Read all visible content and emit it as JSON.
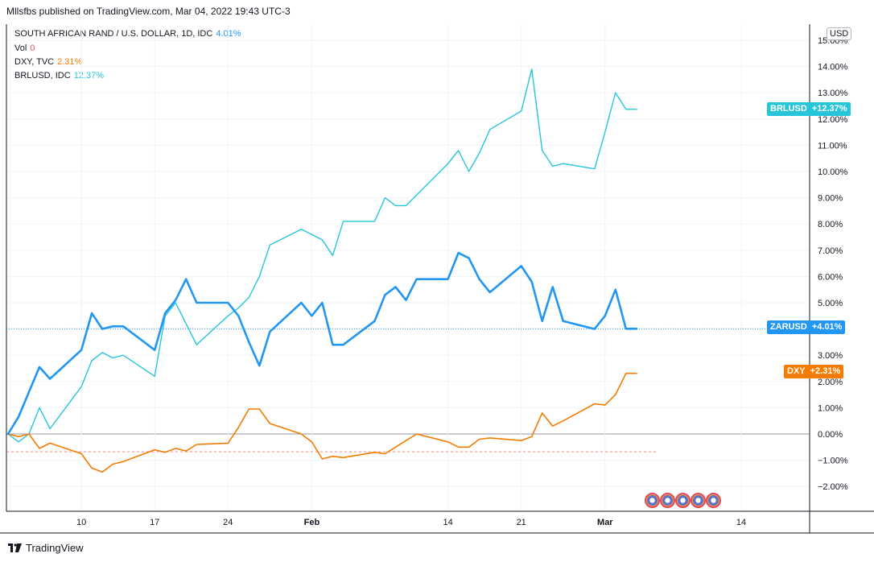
{
  "header": {
    "published": "Mllsfbs published on TradingView.com, Mar 04, 2022 19:43 UTC-3"
  },
  "legend": [
    {
      "label": "SOUTH AFRICAN RAND / U.S. DOLLAR, 1D, IDC",
      "value": "4.01%",
      "color": "#2196f3"
    },
    {
      "label": "Vol",
      "value": "0",
      "color": "#ef5350"
    },
    {
      "label": "DXY, TVC",
      "value": "2.31%",
      "color": "#f57c00"
    },
    {
      "label": "BRLUSD, IDC",
      "value": "12.37%",
      "color": "#26c6da"
    }
  ],
  "axis": {
    "currency": "USD",
    "y_ticks": [
      "15.00%",
      "14.00%",
      "13.00%",
      "12.00%",
      "11.00%",
      "10.00%",
      "9.00%",
      "8.00%",
      "7.00%",
      "6.00%",
      "5.00%",
      "4.00%",
      "3.00%",
      "2.00%",
      "1.00%",
      "0.00%",
      "−1.00%",
      "−2.00%"
    ],
    "x_ticks": [
      {
        "label": "10",
        "date": "2022-01-10",
        "bold": false
      },
      {
        "label": "17",
        "date": "2022-01-17",
        "bold": false
      },
      {
        "label": "24",
        "date": "2022-01-24",
        "bold": false
      },
      {
        "label": "Feb",
        "date": "2022-02-01",
        "bold": true
      },
      {
        "label": "14",
        "date": "2022-02-14",
        "bold": false
      },
      {
        "label": "21",
        "date": "2022-02-21",
        "bold": false
      },
      {
        "label": "Mar",
        "date": "2022-03-01",
        "bold": true
      },
      {
        "label": "14",
        "date": "2022-03-14",
        "bold": false
      }
    ]
  },
  "badges": {
    "brlusd": {
      "name": "BRLUSD",
      "value": "+12.37%",
      "color": "#26c6da"
    },
    "zarusd": {
      "name": "ZARUSD",
      "value": "+4.01%",
      "color": "#2196f3"
    },
    "dxy": {
      "name": "DXY",
      "value": "+2.31%",
      "color": "#f57c00"
    }
  },
  "footer": {
    "brand": "TradingView"
  },
  "chart_data": {
    "type": "line",
    "ylim": [
      -3.0,
      15.5
    ],
    "xlim": [
      "2022-01-03",
      "2022-03-20"
    ],
    "y_unit": "%",
    "grid": true,
    "legend_position": "top-left",
    "series": [
      {
        "name": "SOUTH AFRICAN RAND / U.S. DOLLAR, 1D, IDC",
        "color": "#2196f3",
        "x": [
          "2022-01-03",
          "2022-01-04",
          "2022-01-05",
          "2022-01-06",
          "2022-01-07",
          "2022-01-10",
          "2022-01-11",
          "2022-01-12",
          "2022-01-13",
          "2022-01-14",
          "2022-01-17",
          "2022-01-18",
          "2022-01-19",
          "2022-01-20",
          "2022-01-21",
          "2022-01-24",
          "2022-01-25",
          "2022-01-26",
          "2022-01-27",
          "2022-01-28",
          "2022-01-31",
          "2022-02-01",
          "2022-02-02",
          "2022-02-03",
          "2022-02-04",
          "2022-02-07",
          "2022-02-08",
          "2022-02-09",
          "2022-02-10",
          "2022-02-11",
          "2022-02-14",
          "2022-02-15",
          "2022-02-16",
          "2022-02-17",
          "2022-02-18",
          "2022-02-21",
          "2022-02-22",
          "2022-02-23",
          "2022-02-24",
          "2022-02-25",
          "2022-02-28",
          "2022-03-01",
          "2022-03-02",
          "2022-03-03",
          "2022-03-04"
        ],
        "y": [
          0.0,
          0.65,
          1.6,
          2.55,
          2.1,
          3.2,
          4.6,
          4.0,
          4.1,
          4.1,
          3.2,
          4.6,
          5.1,
          5.9,
          5.0,
          5.0,
          4.5,
          3.5,
          2.6,
          3.9,
          5.0,
          4.5,
          5.0,
          3.4,
          3.4,
          4.3,
          5.3,
          5.6,
          5.1,
          5.9,
          5.9,
          6.9,
          6.7,
          5.9,
          5.4,
          6.4,
          5.8,
          4.3,
          5.6,
          4.3,
          4.0,
          4.5,
          5.5,
          4.01,
          4.01
        ]
      },
      {
        "name": "DXY, TVC",
        "color": "#f57c00",
        "x": [
          "2022-01-03",
          "2022-01-04",
          "2022-01-05",
          "2022-01-06",
          "2022-01-07",
          "2022-01-10",
          "2022-01-11",
          "2022-01-12",
          "2022-01-13",
          "2022-01-14",
          "2022-01-17",
          "2022-01-18",
          "2022-01-19",
          "2022-01-20",
          "2022-01-21",
          "2022-01-24",
          "2022-01-25",
          "2022-01-26",
          "2022-01-27",
          "2022-01-28",
          "2022-01-31",
          "2022-02-01",
          "2022-02-02",
          "2022-02-03",
          "2022-02-04",
          "2022-02-07",
          "2022-02-08",
          "2022-02-09",
          "2022-02-10",
          "2022-02-11",
          "2022-02-14",
          "2022-02-15",
          "2022-02-16",
          "2022-02-17",
          "2022-02-18",
          "2022-02-21",
          "2022-02-22",
          "2022-02-23",
          "2022-02-24",
          "2022-02-25",
          "2022-02-28",
          "2022-03-01",
          "2022-03-02",
          "2022-03-03",
          "2022-03-04"
        ],
        "y": [
          0.0,
          -0.1,
          0.0,
          -0.55,
          -0.35,
          -0.75,
          -1.3,
          -1.45,
          -1.15,
          -1.05,
          -0.6,
          -0.7,
          -0.55,
          -0.65,
          -0.4,
          -0.35,
          0.25,
          0.95,
          0.95,
          0.4,
          0.0,
          -0.3,
          -0.95,
          -0.85,
          -0.9,
          -0.7,
          -0.75,
          -0.5,
          -0.25,
          0.0,
          -0.3,
          -0.5,
          -0.5,
          -0.2,
          -0.15,
          -0.25,
          -0.1,
          0.8,
          0.3,
          0.5,
          1.15,
          1.1,
          1.5,
          2.31,
          2.31
        ]
      },
      {
        "name": "BRLUSD, IDC",
        "color": "#26c6da",
        "x": [
          "2022-01-03",
          "2022-01-04",
          "2022-01-05",
          "2022-01-06",
          "2022-01-07",
          "2022-01-10",
          "2022-01-11",
          "2022-01-12",
          "2022-01-13",
          "2022-01-14",
          "2022-01-17",
          "2022-01-18",
          "2022-01-19",
          "2022-01-20",
          "2022-01-21",
          "2022-01-24",
          "2022-01-25",
          "2022-01-26",
          "2022-01-27",
          "2022-01-28",
          "2022-01-31",
          "2022-02-01",
          "2022-02-02",
          "2022-02-03",
          "2022-02-04",
          "2022-02-07",
          "2022-02-08",
          "2022-02-09",
          "2022-02-10",
          "2022-02-11",
          "2022-02-14",
          "2022-02-15",
          "2022-02-16",
          "2022-02-17",
          "2022-02-18",
          "2022-02-21",
          "2022-02-22",
          "2022-02-23",
          "2022-02-24",
          "2022-02-25",
          "2022-02-28",
          "2022-03-01",
          "2022-03-02",
          "2022-03-03",
          "2022-03-04"
        ],
        "y": [
          0.0,
          -0.3,
          0.0,
          1.0,
          0.2,
          1.8,
          2.8,
          3.1,
          2.9,
          3.0,
          2.2,
          4.5,
          5.0,
          4.2,
          3.4,
          4.5,
          4.8,
          5.2,
          6.0,
          7.2,
          7.8,
          7.6,
          7.4,
          6.8,
          8.1,
          8.1,
          9.0,
          8.7,
          8.7,
          9.1,
          10.3,
          10.8,
          10.0,
          10.7,
          11.6,
          12.3,
          13.9,
          10.8,
          10.2,
          10.3,
          10.1,
          11.5,
          13.0,
          12.37,
          12.37
        ]
      }
    ],
    "reference_lines": [
      {
        "name": "ZARUSD last",
        "y": 4.01,
        "color": "#2196f3",
        "style": "dotted"
      },
      {
        "name": "volume baseline",
        "y": -0.68,
        "color": "#ef5350",
        "style": "dashed"
      }
    ]
  }
}
